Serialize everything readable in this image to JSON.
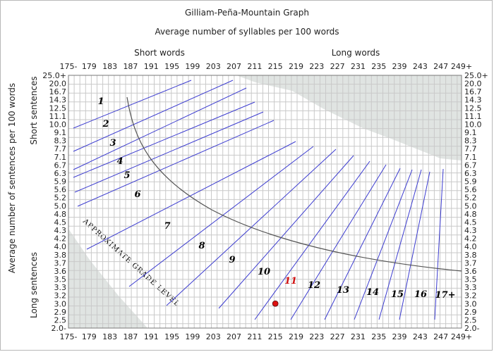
{
  "chart_data": {
    "type": "scatter",
    "title": "Gilliam-Peña-Mountain Graph",
    "subtitle": "Average number of syllables per 100 words",
    "top_labels": {
      "left": "Short words",
      "right": "Long words"
    },
    "ylabel": "Average number of sentences per 100 words",
    "side_labels": {
      "top": "Short sentences",
      "bottom": "Long sentences"
    },
    "curve_label": "APPROXIMATE GRADE LEVEL",
    "x_ticks": [
      "175-",
      "179",
      "183",
      "187",
      "191",
      "195",
      "199",
      "203",
      "207",
      "211",
      "215",
      "219",
      "223",
      "227",
      "231",
      "235",
      "239",
      "243",
      "247",
      "249+"
    ],
    "y_ticks": [
      "25.0+",
      "20.0",
      "16.7",
      "14.3",
      "12.5",
      "11.1",
      "10.0",
      "9.1",
      "8.3",
      "7.7",
      "7.1",
      "6.7",
      "6.3",
      "5.9",
      "5.6",
      "5.2",
      "5.0",
      "4.8",
      "4.5",
      "4.3",
      "4.2",
      "4.0",
      "3.8",
      "3.7",
      "3.6",
      "3.5",
      "3.3",
      "3.2",
      "3.0",
      "2.9",
      "2.5",
      "2.0-"
    ],
    "grade_labels": [
      "1",
      "2",
      "3",
      "4",
      "5",
      "6",
      "7",
      "8",
      "9",
      "10",
      "11",
      "12",
      "13",
      "14",
      "15",
      "16",
      "17+"
    ],
    "highlighted_grade": "11",
    "points": [
      {
        "x": 215,
        "y": 3.0
      }
    ],
    "grid": true,
    "colors": {
      "grade_lines": "#3c3cd0",
      "curve": "#555555",
      "point": "#dd1111",
      "shade": "#e0e4e2",
      "grid": "#c9c9c9"
    }
  }
}
